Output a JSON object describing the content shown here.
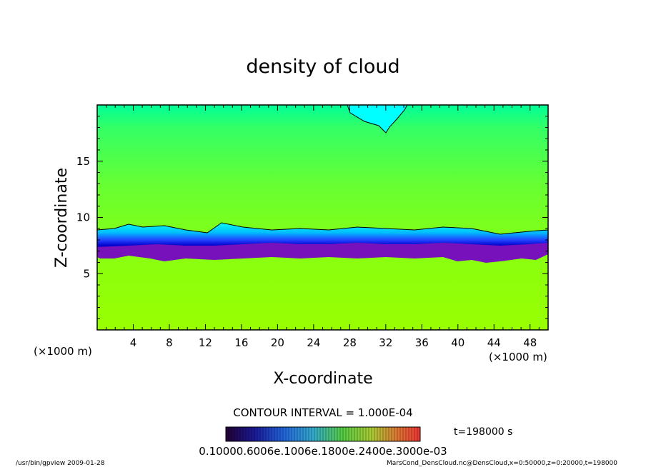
{
  "chart_data": {
    "type": "heatmap",
    "title": "density of cloud",
    "xlabel": "X-coordinate",
    "ylabel": "Z-coordinate",
    "x_unit_label": "(×1000 m)",
    "y_unit_label": "(×1000 m)",
    "xlim": [
      0,
      50
    ],
    "ylim": [
      0,
      20
    ],
    "x_ticks": [
      4,
      8,
      12,
      16,
      20,
      24,
      28,
      32,
      36,
      40,
      44,
      48
    ],
    "y_ticks": [
      5,
      10,
      15
    ],
    "contour_interval": "CONTOUR INTERVAL = 1.000E-04",
    "time_label": "t=198000 s",
    "colorbar_labels": "0.10000.6006e.1006e.1800e.2400e.3000e-03",
    "cloud_base_z": 6.2,
    "cloud_top_z": 9.0,
    "colormap": [
      "#6a0dad",
      "#1a1aff",
      "#00aaff",
      "#00ffff",
      "#33ff66",
      "#88ff00",
      "#c8ff00"
    ]
  },
  "footer": {
    "left": "/usr/bin/gpview  2009-01-28",
    "right": "MarsCond_DensCloud.nc@DensCloud,x=0:50000,z=0:20000,t=198000"
  }
}
